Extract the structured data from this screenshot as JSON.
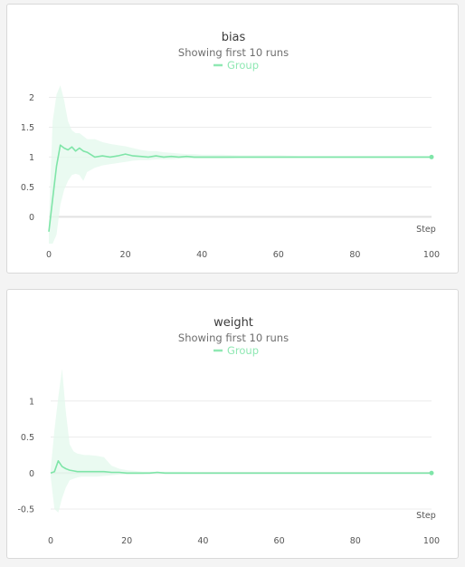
{
  "panels": [
    {
      "title": "bias",
      "subtitle": "Showing first 10 runs",
      "legend": "Group"
    },
    {
      "title": "weight",
      "subtitle": "Showing first 10 runs",
      "legend": "Group"
    }
  ],
  "colors": {
    "line": "#7fe5a8",
    "band": "#e3f8ec"
  },
  "chart_data": [
    {
      "type": "line",
      "title": "bias",
      "subtitle": "Showing first 10 runs",
      "xlabel": "Step",
      "ylabel": "",
      "xlim": [
        0,
        100
      ],
      "ylim": [
        -0.45,
        2.25
      ],
      "xticks": [
        0,
        20,
        40,
        60,
        80,
        100
      ],
      "yticks": [
        0,
        0.5,
        1,
        1.5,
        2
      ],
      "grid": true,
      "legend_position": "top-center",
      "series": [
        {
          "name": "Group",
          "x": [
            0,
            1,
            2,
            3,
            4,
            5,
            6,
            7,
            8,
            9,
            10,
            12,
            14,
            16,
            18,
            20,
            22,
            24,
            26,
            28,
            30,
            32,
            34,
            36,
            38,
            40,
            45,
            50,
            55,
            60,
            65,
            70,
            75,
            80,
            85,
            90,
            95,
            100
          ],
          "y": [
            -0.25,
            0.3,
            0.85,
            1.2,
            1.15,
            1.12,
            1.17,
            1.1,
            1.15,
            1.1,
            1.08,
            1.0,
            1.02,
            1.0,
            1.02,
            1.05,
            1.02,
            1.01,
            1.0,
            1.02,
            1.0,
            1.01,
            1.0,
            1.01,
            1.0,
            1.0,
            1.0,
            1.0,
            1.0,
            1.0,
            1.0,
            1.0,
            1.0,
            1.0,
            1.0,
            1.0,
            1.0,
            1.0
          ],
          "upper": [
            -0.1,
            1.6,
            2.05,
            2.2,
            1.95,
            1.6,
            1.45,
            1.4,
            1.4,
            1.35,
            1.3,
            1.3,
            1.25,
            1.22,
            1.2,
            1.18,
            1.15,
            1.12,
            1.1,
            1.1,
            1.08,
            1.07,
            1.06,
            1.05,
            1.05,
            1.04,
            1.04,
            1.03,
            1.03,
            1.03,
            1.02,
            1.02,
            1.02,
            1.02,
            1.02,
            1.02,
            1.02,
            1.02
          ],
          "lower": [
            -0.45,
            -0.45,
            -0.3,
            0.2,
            0.45,
            0.6,
            0.7,
            0.72,
            0.7,
            0.6,
            0.75,
            0.82,
            0.86,
            0.88,
            0.9,
            0.92,
            0.94,
            0.95,
            0.95,
            0.96,
            0.96,
            0.96,
            0.97,
            0.97,
            0.97,
            0.97,
            0.97,
            0.98,
            0.98,
            0.98,
            0.98,
            0.98,
            0.98,
            0.98,
            0.98,
            0.98,
            0.98,
            0.98
          ]
        }
      ]
    },
    {
      "type": "line",
      "title": "weight",
      "subtitle": "Showing first 10 runs",
      "xlabel": "Step",
      "ylabel": "",
      "xlim": [
        0,
        100
      ],
      "ylim": [
        -0.6,
        1.5
      ],
      "xticks": [
        0,
        20,
        40,
        60,
        80,
        100
      ],
      "yticks": [
        -0.5,
        0,
        0.5,
        1
      ],
      "grid": true,
      "legend_position": "top-center",
      "series": [
        {
          "name": "Group",
          "x": [
            0,
            1,
            2,
            3,
            4,
            5,
            6,
            7,
            8,
            9,
            10,
            12,
            14,
            16,
            18,
            20,
            22,
            24,
            26,
            28,
            30,
            35,
            40,
            50,
            60,
            70,
            80,
            90,
            100
          ],
          "y": [
            0.0,
            0.02,
            0.17,
            0.09,
            0.06,
            0.04,
            0.03,
            0.02,
            0.02,
            0.02,
            0.02,
            0.02,
            0.02,
            0.01,
            0.01,
            0.0,
            0.0,
            0.0,
            0.0,
            0.01,
            0.0,
            0.0,
            0.0,
            0.0,
            0.0,
            0.0,
            0.0,
            0.0,
            0.0
          ],
          "upper": [
            0.05,
            0.6,
            1.05,
            1.45,
            0.85,
            0.4,
            0.3,
            0.27,
            0.26,
            0.25,
            0.25,
            0.24,
            0.22,
            0.1,
            0.06,
            0.04,
            0.03,
            0.02,
            0.02,
            0.02,
            0.02,
            0.02,
            0.01,
            0.01,
            0.01,
            0.01,
            0.01,
            0.01,
            0.01
          ],
          "lower": [
            -0.05,
            -0.5,
            -0.55,
            -0.35,
            -0.2,
            -0.1,
            -0.08,
            -0.06,
            -0.05,
            -0.05,
            -0.05,
            -0.05,
            -0.04,
            -0.03,
            -0.02,
            -0.02,
            -0.02,
            -0.02,
            -0.01,
            -0.01,
            -0.01,
            -0.01,
            -0.01,
            -0.01,
            -0.01,
            -0.01,
            -0.01,
            -0.01,
            -0.01
          ]
        }
      ]
    }
  ]
}
